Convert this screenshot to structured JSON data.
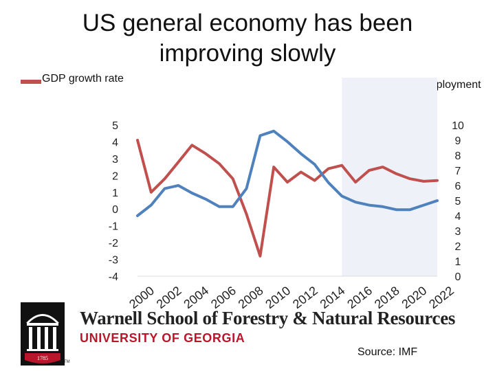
{
  "title_lines": [
    "US general economy has been",
    "improving slowly"
  ],
  "source": "Source: IMF",
  "logo": {
    "wordmark_line1": "Warnell School of Forestry & Natural Resources",
    "wordmark_line2": "UNIVERSITY OF GEORGIA",
    "arch_year": "1785",
    "trademark": "TM"
  },
  "colors": {
    "gdp": "#c0504d",
    "unemployment": "#4f81bd",
    "shade": "#eef2f8",
    "axis": "#d9d9d9"
  },
  "chart_data": {
    "type": "line",
    "title": "US general economy has been improving slowly",
    "x": [
      2000,
      2001,
      2002,
      2003,
      2004,
      2005,
      2006,
      2007,
      2008,
      2009,
      2010,
      2011,
      2012,
      2013,
      2014,
      2015,
      2016,
      2017,
      2018,
      2019,
      2020,
      2021,
      2022
    ],
    "x_tick_labels": [
      "2000",
      "2002",
      "2004",
      "2006",
      "2008",
      "2010",
      "2012",
      "2014",
      "2016",
      "2018",
      "2020",
      "2022"
    ],
    "series": [
      {
        "name": "GDP growth rate",
        "axis": "left",
        "values": [
          4.1,
          1.0,
          1.8,
          2.8,
          3.8,
          3.3,
          2.7,
          1.8,
          -0.3,
          -2.8,
          2.5,
          1.6,
          2.2,
          1.7,
          2.4,
          2.6,
          1.6,
          2.3,
          2.5,
          2.1,
          1.8,
          1.65,
          1.7
        ]
      },
      {
        "name": "Unemployment rate",
        "axis": "right",
        "values": [
          4.0,
          4.7,
          5.8,
          6.0,
          5.5,
          5.1,
          4.6,
          4.6,
          5.8,
          9.3,
          9.6,
          8.9,
          8.1,
          7.4,
          6.2,
          5.3,
          4.9,
          4.7,
          4.6,
          4.4,
          4.4,
          4.7,
          5.0
        ]
      }
    ],
    "y_left": {
      "min": -4,
      "max": 5,
      "tick_labels": [
        "5",
        "4",
        "3",
        "2",
        "1",
        "0",
        "-1",
        "-2",
        "-3",
        "-4"
      ]
    },
    "y_right": {
      "min": 0,
      "max": 10,
      "tick_labels": [
        "10",
        "9",
        "8",
        "7",
        "6",
        "5",
        "4",
        "3",
        "2",
        "1",
        "0"
      ]
    },
    "shaded_region": {
      "x_start": 2015,
      "x_end": 2022
    },
    "legend": [
      {
        "name": "GDP growth rate",
        "placement": "top-left"
      },
      {
        "name": "Unemployment rate",
        "placement": "top-right"
      }
    ]
  }
}
